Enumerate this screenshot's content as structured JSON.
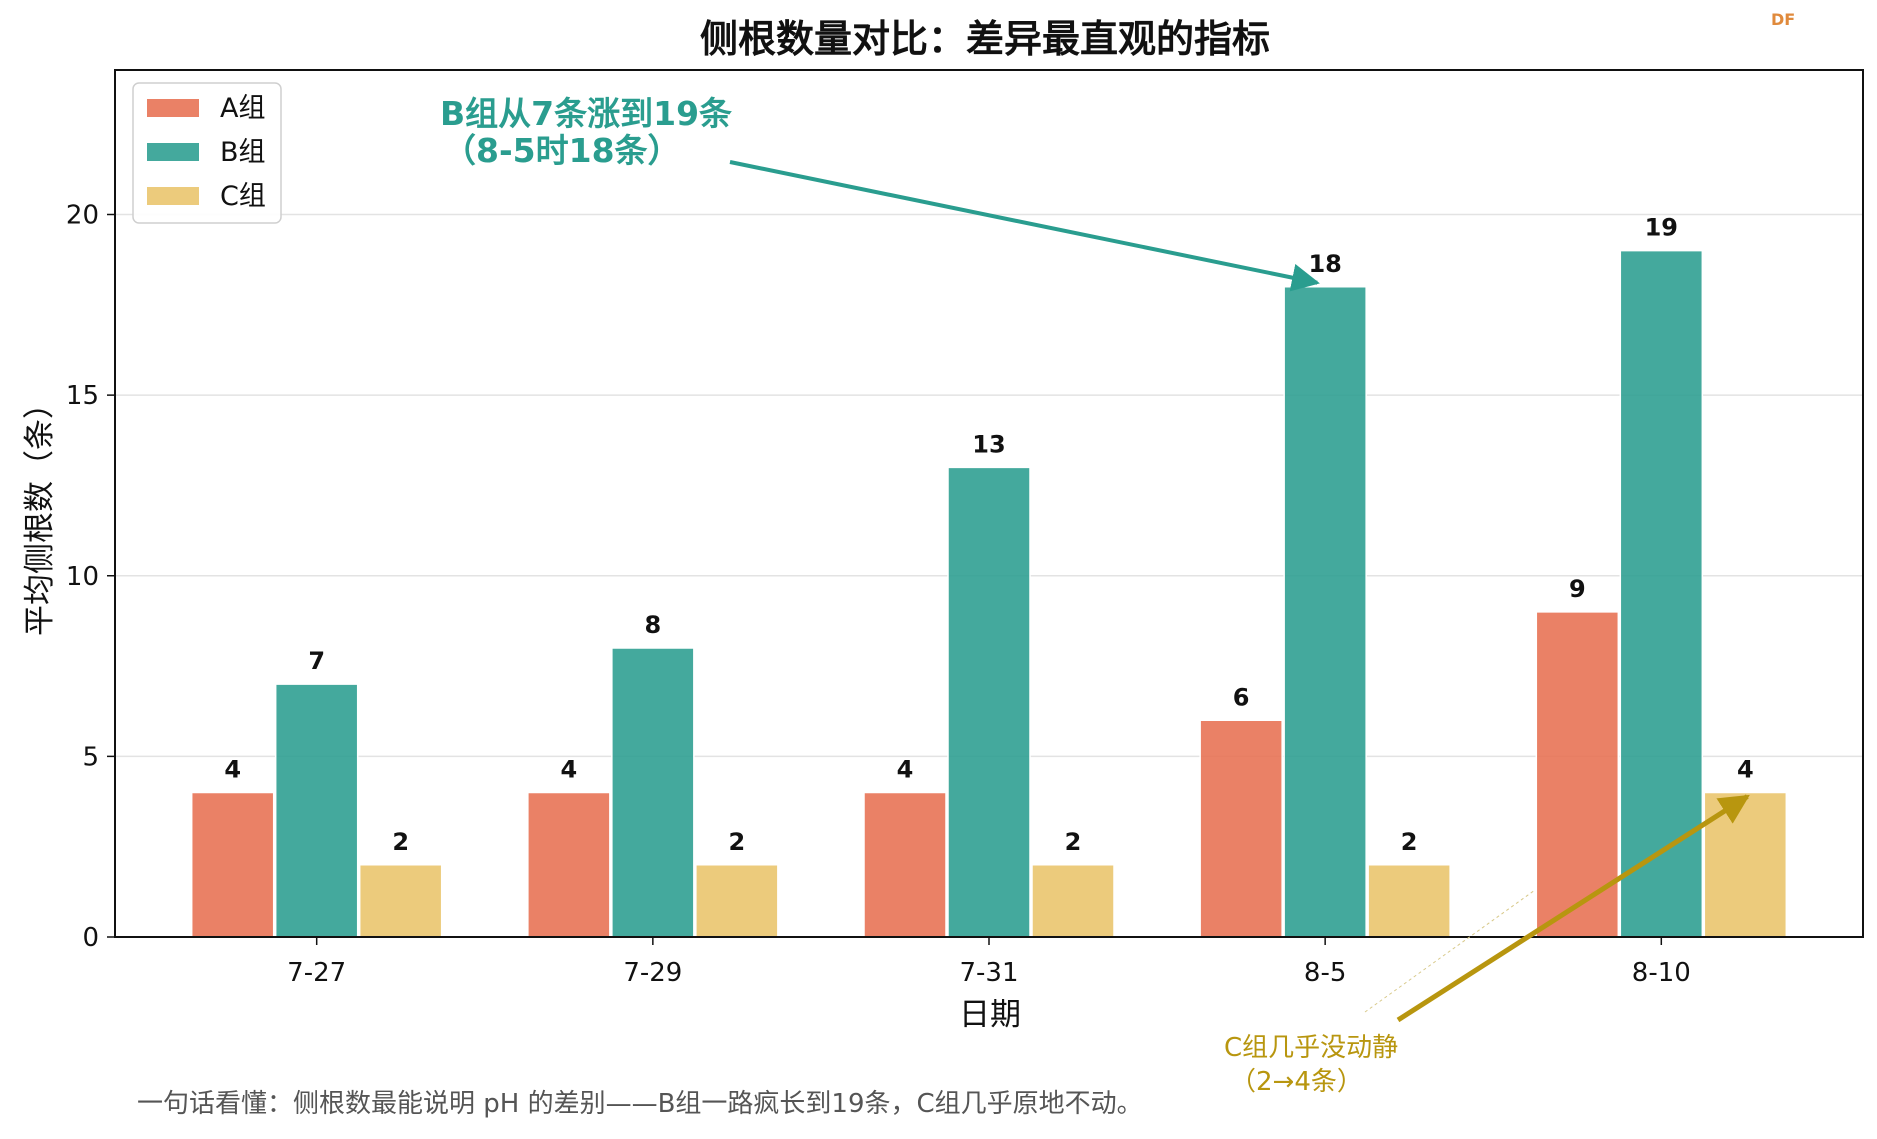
{
  "chart_data": {
    "type": "bar",
    "title": "侧根数量对比：差异最直观的指标",
    "xlabel": "日期",
    "ylabel": "平均侧根数（条）",
    "categories": [
      "7-27",
      "7-29",
      "7-31",
      "8-5",
      "8-10"
    ],
    "series": [
      {
        "name": "A组",
        "values": [
          4,
          4,
          4,
          6,
          9
        ],
        "color": "#e76f51"
      },
      {
        "name": "B组",
        "values": [
          7,
          8,
          13,
          18,
          19
        ],
        "color": "#2a9d8f"
      },
      {
        "name": "C组",
        "values": [
          2,
          2,
          2,
          2,
          4
        ],
        "color": "#e9c46a"
      }
    ],
    "ylim": [
      0,
      24
    ],
    "yticks": [
      0,
      5,
      10,
      15,
      20
    ],
    "grid": "horizontal",
    "legend_position": "top-left",
    "annotations": [
      {
        "text_lines": [
          "B组从7条涨到19条",
          "（8-5时18条）"
        ],
        "target_category": "8-5",
        "target_series": "B组",
        "target_value": 18,
        "color": "#2a9d8f"
      },
      {
        "text_lines": [
          "C组几乎没动静",
          "（2→4条）"
        ],
        "target_category": "8-10",
        "target_series": "C组",
        "target_value": 4,
        "color": "#b8960f"
      }
    ]
  },
  "footnote": "一句话看懂：侧根数最能说明 pH 的差别——B组一路疯长到19条，C组几乎原地不动。",
  "watermark": "DF"
}
